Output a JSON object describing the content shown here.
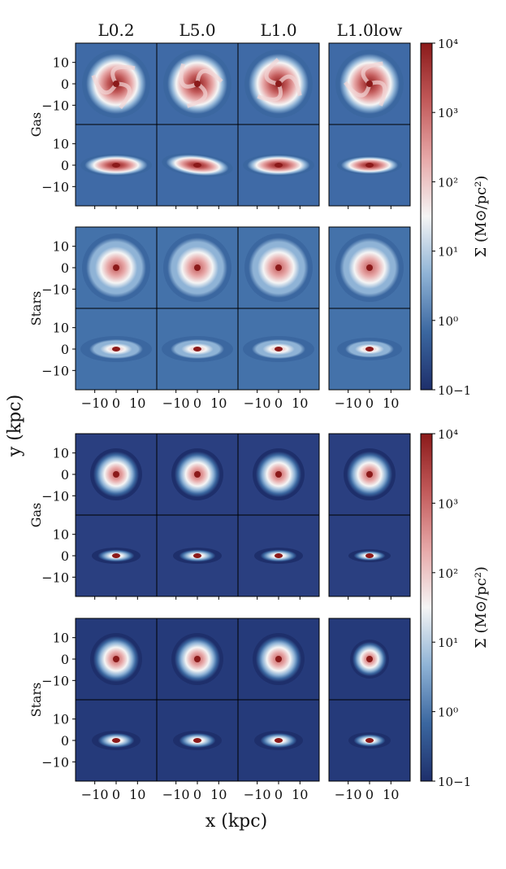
{
  "chart_data": {
    "type": "heatmap",
    "title": "",
    "xlabel": "x (kpc)",
    "ylabel": "y (kpc)",
    "column_titles": [
      "L0.2",
      "L5.0",
      "L1.0",
      "L1.0low"
    ],
    "x_ticks": [
      "−10",
      "0",
      "10"
    ],
    "x_tick_values": [
      -10,
      0,
      10
    ],
    "y_ticks": [
      "10",
      "0",
      "−10"
    ],
    "y_tick_values": [
      10,
      0,
      -10
    ],
    "xlim": [
      -19,
      19
    ],
    "ylim": [
      -19,
      19
    ],
    "groups": [
      {
        "rows": [
          {
            "label": "Gas",
            "views": [
              "face-on",
              "edge-on"
            ]
          },
          {
            "label": "Stars",
            "views": [
              "face-on",
              "edge-on"
            ]
          }
        ],
        "colorbar": {
          "label": "Σ (M⊙/pc²)",
          "scale": "log",
          "range": [
            0.1,
            10000
          ],
          "tick_labels": [
            "10−1",
            "10⁰",
            "10¹",
            "10²",
            "10³",
            "10⁴"
          ]
        }
      },
      {
        "rows": [
          {
            "label": "Gas",
            "views": [
              "face-on",
              "edge-on"
            ]
          },
          {
            "label": "Stars",
            "views": [
              "face-on",
              "edge-on"
            ]
          }
        ],
        "colorbar": {
          "label": "Σ (M⊙/pc²)",
          "scale": "log",
          "range": [
            0.1,
            10000
          ],
          "tick_labels": [
            "10−1",
            "10⁰",
            "10¹",
            "10²",
            "10³",
            "10⁴"
          ]
        }
      }
    ],
    "colormap": [
      "#1e2f6b",
      "#3b67a0",
      "#8fb3d6",
      "#f5f5f5",
      "#e7a8a8",
      "#c25a5a",
      "#8b1a1a"
    ]
  }
}
